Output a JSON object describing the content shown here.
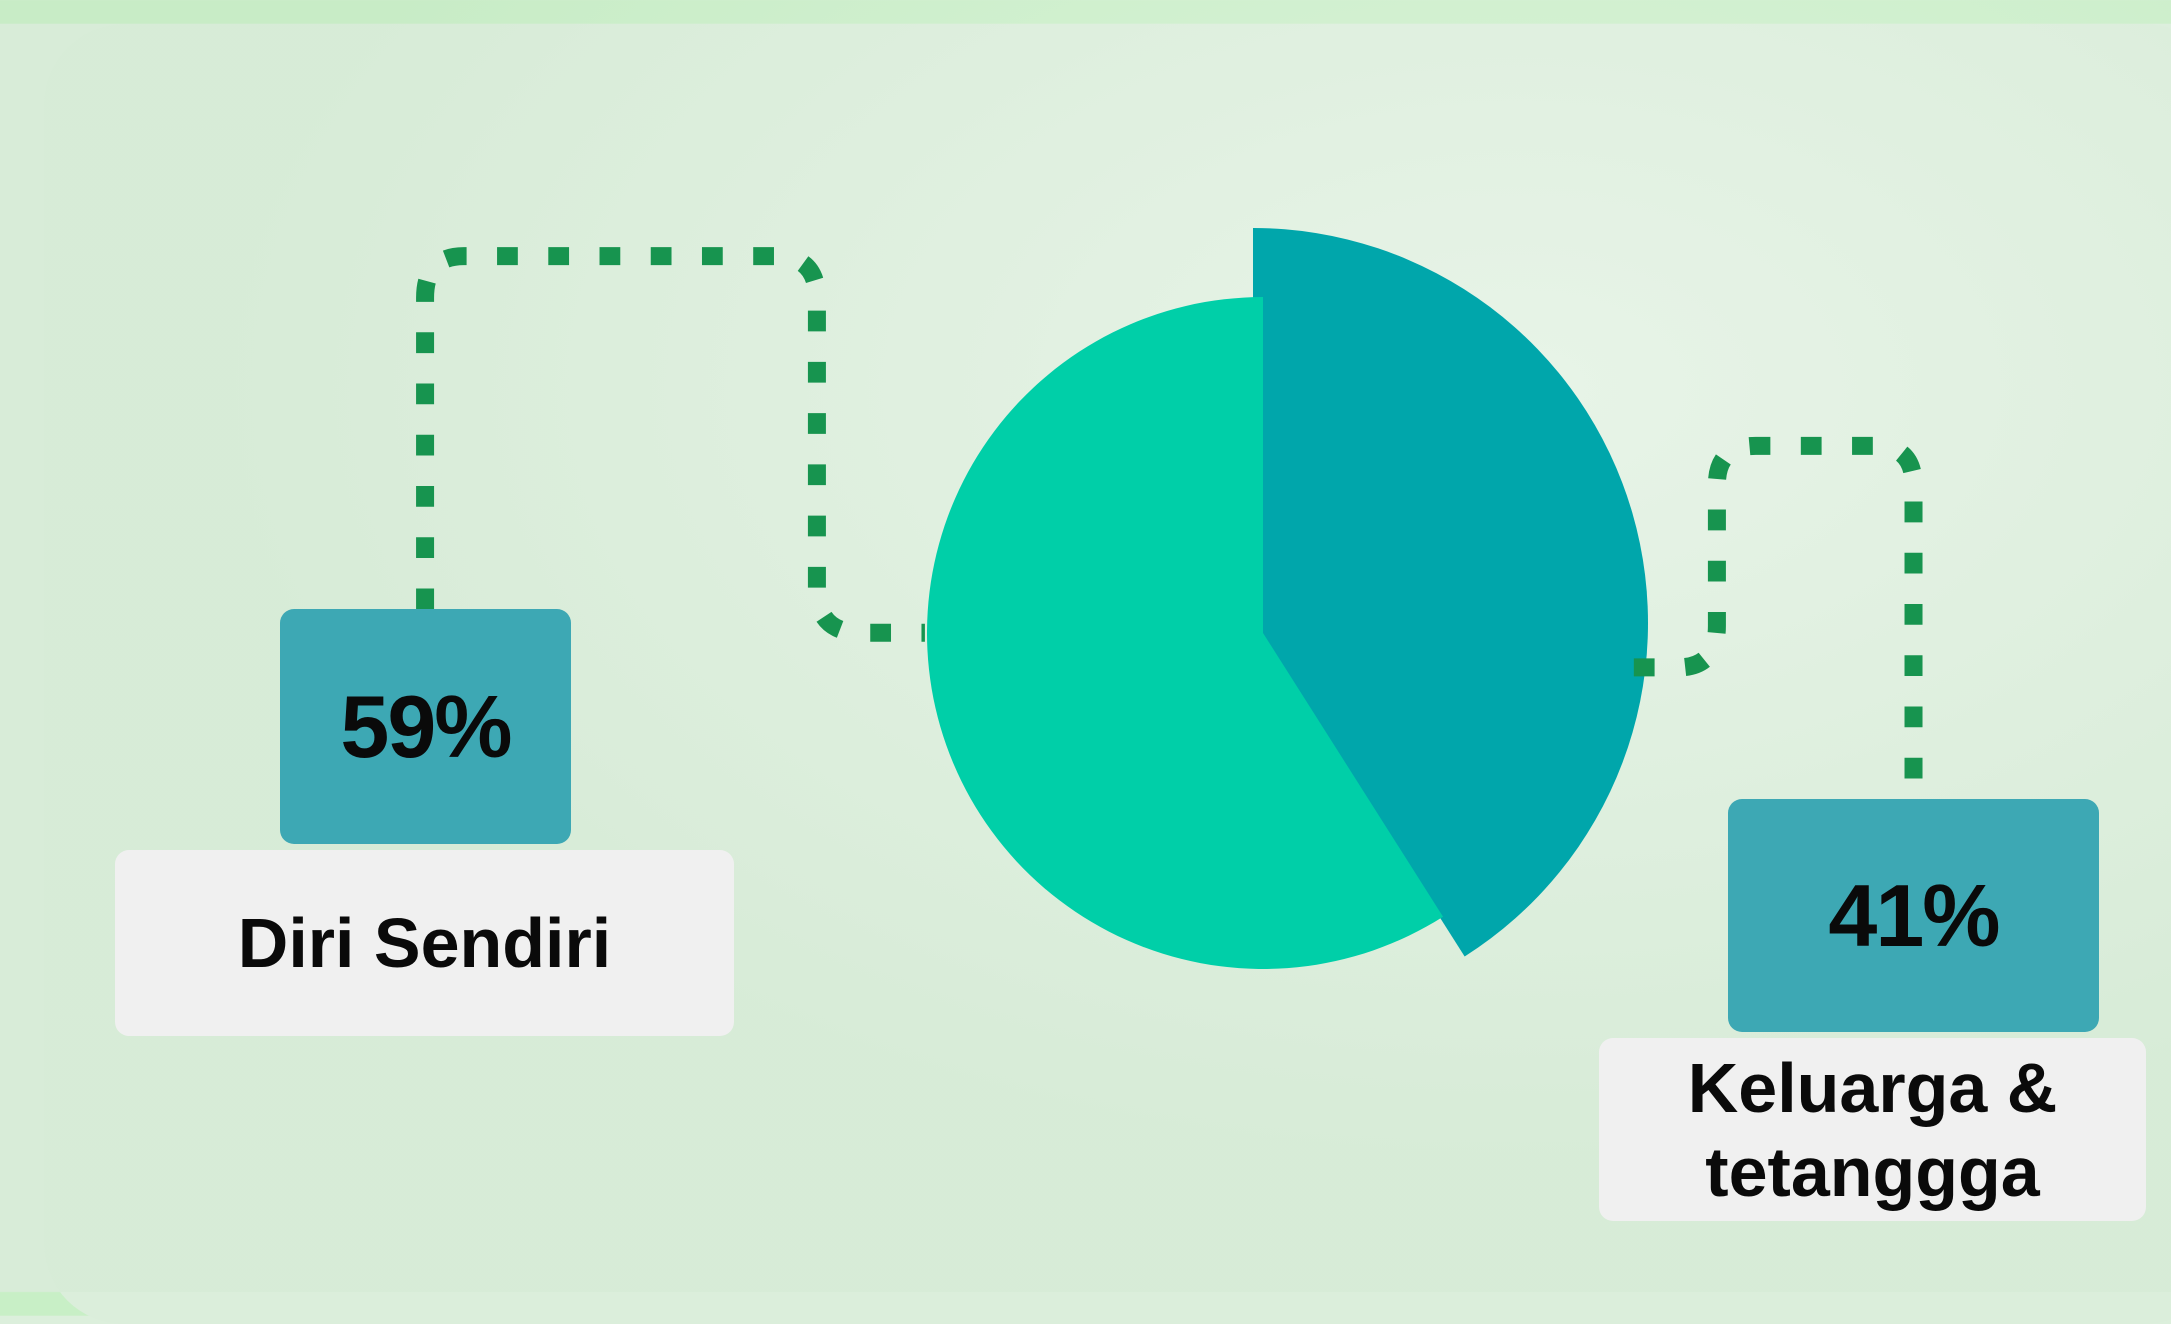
{
  "chart_data": {
    "type": "pie",
    "categories": [
      "Diri Sendiri",
      "Keluarga & tetanggga"
    ],
    "values": [
      59,
      41
    ],
    "value_labels": [
      "59%",
      "41%"
    ],
    "colors": [
      "#00cfa8",
      "#00a6ab"
    ]
  }
}
